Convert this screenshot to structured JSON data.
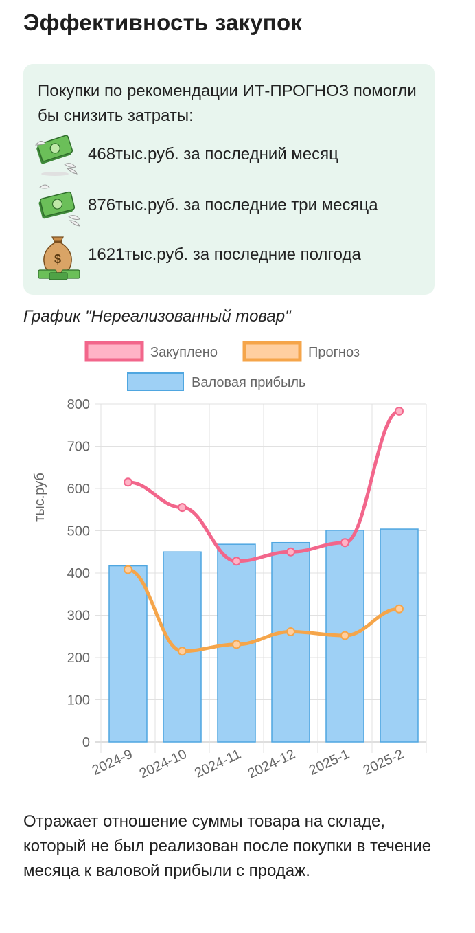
{
  "page": {
    "title": "Эффективность закупок"
  },
  "savings": {
    "intro": "Покупки по рекомендации ИТ-ПРОГНОЗ помогли бы снизить затраты:",
    "items": [
      {
        "icon": "flying-money-icon",
        "text": "468тыс.руб. за последний месяц"
      },
      {
        "icon": "flying-money-icon",
        "text": "876тыс.руб. за последние три месяца"
      },
      {
        "icon": "money-bag-icon",
        "text": "1621тыс.руб. за последние полгода"
      }
    ]
  },
  "chart_title": "График \"Нереализованный товар\"",
  "chart_note": "Отражает отношение суммы товара на складе, который не был реализован после покупки в течение месяца к валовой прибыли с продаж.",
  "chart_data": {
    "type": "bar",
    "categories": [
      "2024-9",
      "2024-10",
      "2024-11",
      "2024-12",
      "2025-1",
      "2025-2"
    ],
    "ylabel": "тыс.руб",
    "xlabel": "",
    "ylim": [
      0,
      800
    ],
    "yticks": [
      0,
      100,
      200,
      300,
      400,
      500,
      600,
      700,
      800
    ],
    "grid": true,
    "legend_position": "top",
    "series": [
      {
        "name": "Закуплено",
        "type": "line",
        "color": "#f2668b",
        "fill": "#ffb3c6",
        "values": [
          615,
          555,
          428,
          450,
          472,
          783
        ]
      },
      {
        "name": "Прогноз",
        "type": "line",
        "color": "#f5a54a",
        "fill": "#ffcfa0",
        "values": [
          408,
          215,
          231,
          261,
          252,
          315
        ]
      },
      {
        "name": "Валовая прибыль",
        "type": "bar",
        "color": "#4fa6e0",
        "fill": "#9ed0f5",
        "values": [
          417,
          450,
          468,
          472,
          501,
          504
        ]
      }
    ]
  }
}
